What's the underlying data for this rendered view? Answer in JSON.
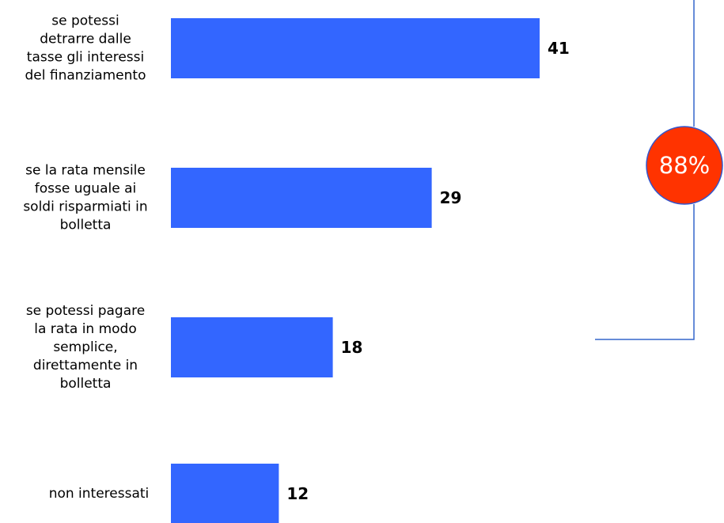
{
  "chart_data": {
    "type": "bar",
    "orientation": "horizontal",
    "categories": [
      [
        "se potessi",
        "detrarre dalle",
        "tasse gli interessi",
        "del finanziamento"
      ],
      [
        "se la rata mensile",
        "fosse uguale ai",
        "soldi risparmiati in",
        "bolletta"
      ],
      [
        "se potessi pagare",
        "la rata in modo",
        "semplice,",
        "direttamente in",
        "bolletta"
      ],
      [
        "non interessati"
      ]
    ],
    "values": [
      41,
      29,
      18,
      12
    ],
    "value_labels": [
      "41",
      "29",
      "18",
      "12"
    ],
    "xlim": [
      0,
      41
    ],
    "grid": false,
    "bracket": {
      "label": "88%",
      "covers_categories": [
        0,
        1,
        2
      ]
    }
  },
  "colors": {
    "bar": "#3366ff",
    "bracket_line": "#3366cc",
    "badge_fill": "#ff3300",
    "badge_stroke": "#3355cc",
    "badge_text": "#ffffff"
  }
}
